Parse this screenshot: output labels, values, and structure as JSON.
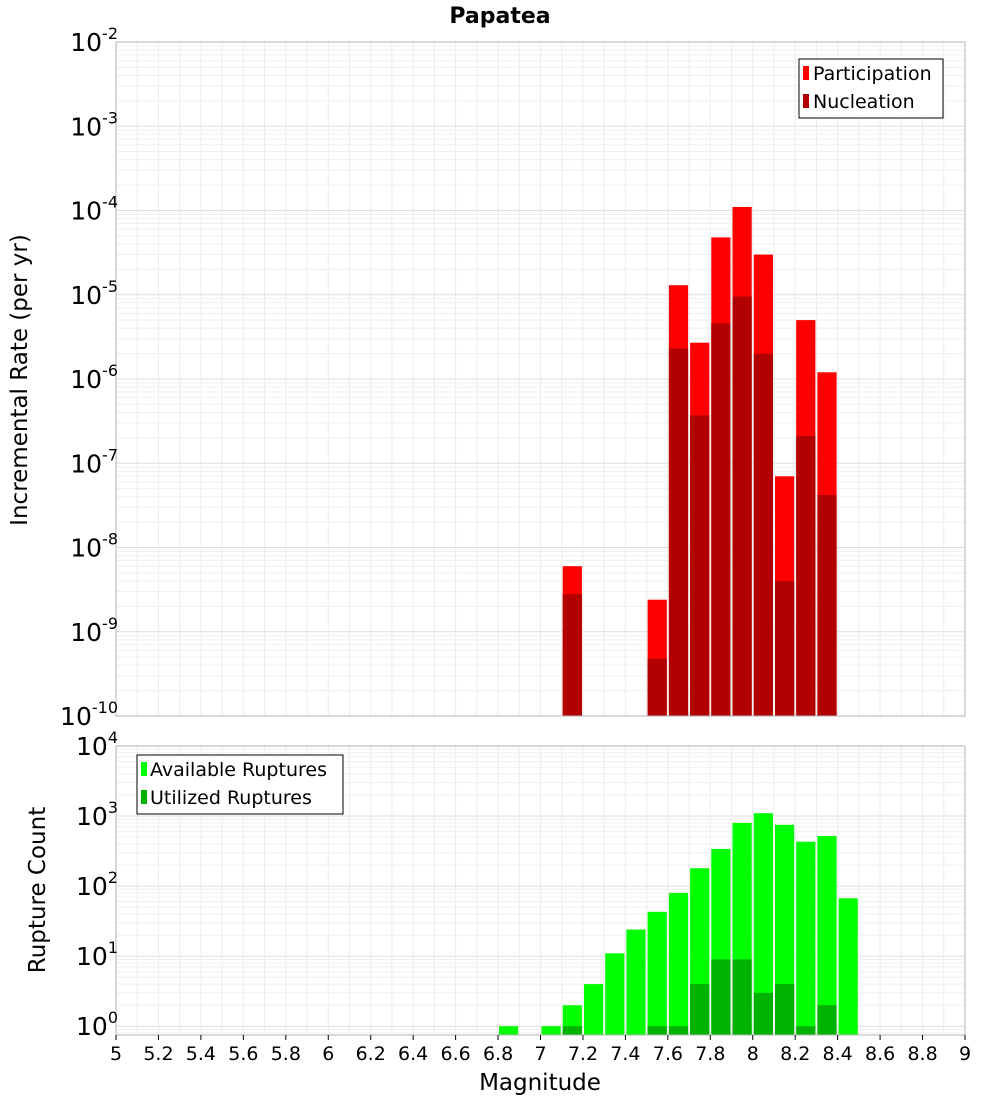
{
  "chart_data": [
    {
      "type": "bar",
      "title": "Papatea",
      "xlabel": "",
      "ylabel": "Incremental Rate (per yr)",
      "yscale": "log",
      "ylim": [
        1e-10,
        0.01
      ],
      "xlim": [
        5,
        9
      ],
      "bin_width": 0.1,
      "y_ticks": [
        {
          "base": "10",
          "exp": "-10"
        },
        {
          "base": "10",
          "exp": "-9"
        },
        {
          "base": "10",
          "exp": "-8"
        },
        {
          "base": "10",
          "exp": "-7"
        },
        {
          "base": "10",
          "exp": "-6"
        },
        {
          "base": "10",
          "exp": "-5"
        },
        {
          "base": "10",
          "exp": "-4"
        },
        {
          "base": "10",
          "exp": "-3"
        },
        {
          "base": "10",
          "exp": "-2"
        }
      ],
      "legend_position": "top-right",
      "series": [
        {
          "name": "Participation",
          "color": "#ff0000",
          "points": [
            {
              "x": 7.15,
              "y": 6e-09
            },
            {
              "x": 7.55,
              "y": 2.4e-09
            },
            {
              "x": 7.65,
              "y": 1.3e-05
            },
            {
              "x": 7.75,
              "y": 2.7e-06
            },
            {
              "x": 7.85,
              "y": 4.8e-05
            },
            {
              "x": 7.95,
              "y": 0.00011
            },
            {
              "x": 8.05,
              "y": 3e-05
            },
            {
              "x": 8.15,
              "y": 7e-08
            },
            {
              "x": 8.25,
              "y": 5e-06
            },
            {
              "x": 8.35,
              "y": 1.2e-06
            }
          ]
        },
        {
          "name": "Nucleation",
          "color": "#b20000",
          "points": [
            {
              "x": 7.15,
              "y": 2.8e-09
            },
            {
              "x": 7.55,
              "y": 4.8e-10
            },
            {
              "x": 7.65,
              "y": 2.3e-06
            },
            {
              "x": 7.75,
              "y": 3.7e-07
            },
            {
              "x": 7.85,
              "y": 4.6e-06
            },
            {
              "x": 7.95,
              "y": 9.5e-06
            },
            {
              "x": 8.05,
              "y": 2e-06
            },
            {
              "x": 8.15,
              "y": 4e-09
            },
            {
              "x": 8.25,
              "y": 2.1e-07
            },
            {
              "x": 8.35,
              "y": 4.2e-08
            }
          ]
        }
      ]
    },
    {
      "type": "bar",
      "title": "",
      "xlabel": "Magnitude",
      "ylabel": "Rupture Count",
      "yscale": "log",
      "ylim": [
        0.75,
        10000
      ],
      "xlim": [
        5,
        9
      ],
      "bin_width": 0.1,
      "x_ticks": [
        "5",
        "5.2",
        "5.4",
        "5.6",
        "5.8",
        "6",
        "6.2",
        "6.4",
        "6.6",
        "6.8",
        "7",
        "7.2",
        "7.4",
        "7.6",
        "7.8",
        "8",
        "8.2",
        "8.4",
        "8.6",
        "8.8",
        "9"
      ],
      "y_ticks": [
        {
          "base": "10",
          "exp": "0"
        },
        {
          "base": "10",
          "exp": "1"
        },
        {
          "base": "10",
          "exp": "2"
        },
        {
          "base": "10",
          "exp": "3"
        },
        {
          "base": "10",
          "exp": "4"
        }
      ],
      "legend_position": "top-left",
      "series": [
        {
          "name": "Available Ruptures",
          "color": "#00ff00",
          "points": [
            {
              "x": 6.85,
              "y": 1
            },
            {
              "x": 7.05,
              "y": 1
            },
            {
              "x": 7.15,
              "y": 2
            },
            {
              "x": 7.25,
              "y": 4
            },
            {
              "x": 7.35,
              "y": 11
            },
            {
              "x": 7.45,
              "y": 24
            },
            {
              "x": 7.55,
              "y": 43
            },
            {
              "x": 7.65,
              "y": 80
            },
            {
              "x": 7.75,
              "y": 180
            },
            {
              "x": 7.85,
              "y": 340
            },
            {
              "x": 7.95,
              "y": 800
            },
            {
              "x": 8.05,
              "y": 1100
            },
            {
              "x": 8.15,
              "y": 750
            },
            {
              "x": 8.25,
              "y": 430
            },
            {
              "x": 8.35,
              "y": 520
            },
            {
              "x": 8.45,
              "y": 67
            }
          ]
        },
        {
          "name": "Utilized Ruptures",
          "color": "#00b200",
          "points": [
            {
              "x": 7.15,
              "y": 1
            },
            {
              "x": 7.55,
              "y": 1
            },
            {
              "x": 7.65,
              "y": 1
            },
            {
              "x": 7.75,
              "y": 4
            },
            {
              "x": 7.85,
              "y": 9
            },
            {
              "x": 7.95,
              "y": 9
            },
            {
              "x": 8.05,
              "y": 3
            },
            {
              "x": 8.15,
              "y": 4
            },
            {
              "x": 8.25,
              "y": 1
            },
            {
              "x": 8.35,
              "y": 2
            }
          ]
        }
      ]
    }
  ]
}
